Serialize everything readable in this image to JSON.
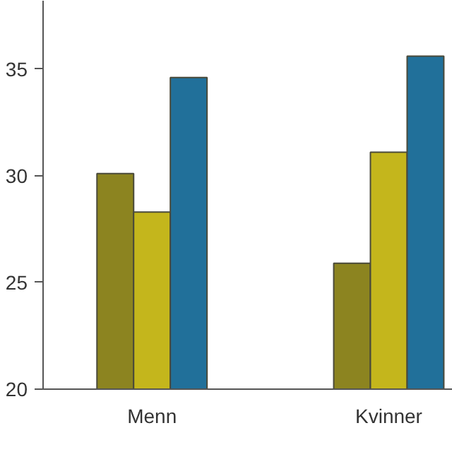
{
  "chart_data": {
    "type": "bar",
    "categories": [
      "Menn",
      "Kvinner"
    ],
    "series": [
      {
        "color": "#8c8420",
        "values": [
          30.1,
          25.9
        ]
      },
      {
        "color": "#c4b61c",
        "values": [
          28.3,
          31.1
        ]
      },
      {
        "color": "#21709a",
        "values": [
          34.6,
          35.6
        ]
      }
    ],
    "ylim": [
      20,
      38.2
    ],
    "yticks": [
      20,
      25,
      30,
      35
    ],
    "grid": false
  }
}
